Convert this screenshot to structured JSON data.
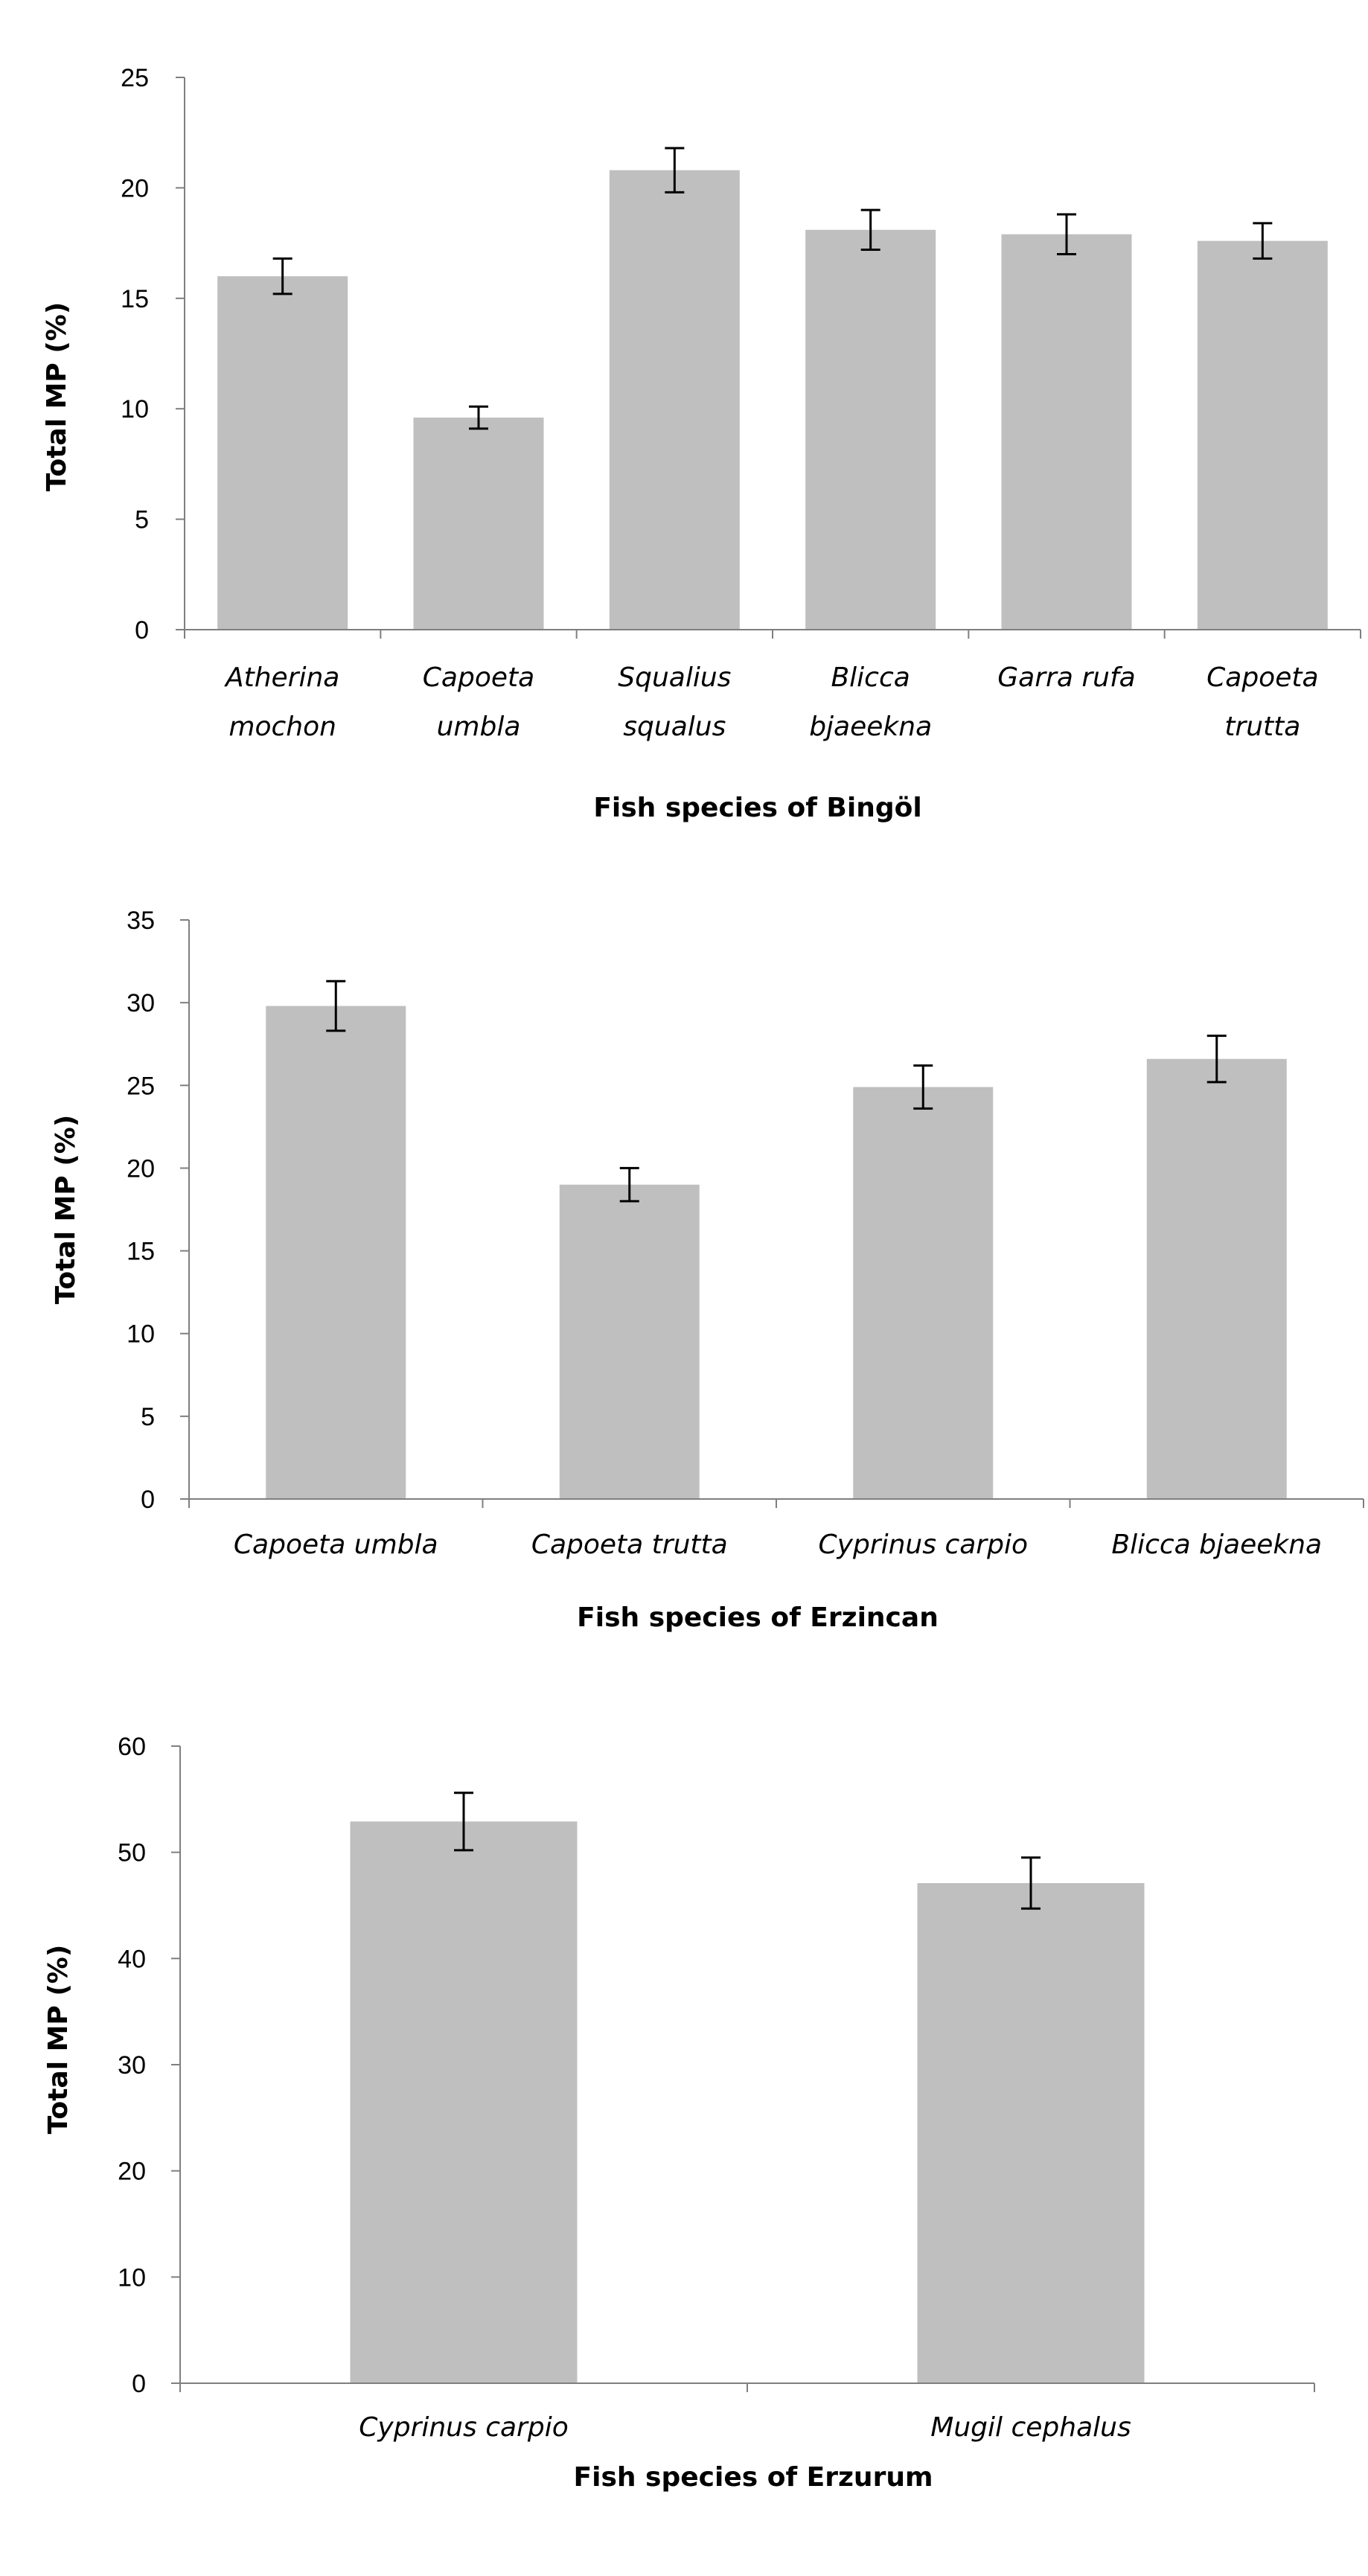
{
  "chart_data": [
    {
      "type": "bar",
      "title": "",
      "xlabel": "Fish species of Bingöl",
      "ylabel": "Total MP (%)",
      "ylim": [
        0,
        25
      ],
      "yticks": [
        0,
        5,
        10,
        15,
        20,
        25
      ],
      "grid": false,
      "categories": [
        [
          "Atherina",
          "mochon"
        ],
        [
          "Capoeta",
          "umbla"
        ],
        [
          "Squalius",
          "squalus"
        ],
        [
          "Blicca",
          "bjaeekna"
        ],
        [
          "Garra rufa"
        ],
        [
          "Capoeta",
          "trutta"
        ]
      ],
      "values": [
        16.0,
        9.6,
        20.8,
        18.1,
        17.9,
        17.6
      ],
      "errors": [
        0.8,
        0.5,
        1.0,
        0.9,
        0.9,
        0.8
      ],
      "color": "#bfbfbf"
    },
    {
      "type": "bar",
      "title": "",
      "xlabel": "Fish species of Erzincan",
      "ylabel": "Total MP (%)",
      "ylim": [
        0,
        35
      ],
      "yticks": [
        0,
        5,
        10,
        15,
        20,
        25,
        30,
        35
      ],
      "grid": false,
      "categories": [
        [
          "Capoeta umbla"
        ],
        [
          "Capoeta trutta"
        ],
        [
          "Cyprinus carpio"
        ],
        [
          "Blicca bjaeekna"
        ]
      ],
      "values": [
        29.8,
        19.0,
        24.9,
        26.6
      ],
      "errors": [
        1.5,
        1.0,
        1.3,
        1.4
      ],
      "color": "#bfbfbf"
    },
    {
      "type": "bar",
      "title": "",
      "xlabel": "Fish species of Erzurum",
      "ylabel": "Total MP (%)",
      "ylim": [
        0,
        60
      ],
      "yticks": [
        0,
        10,
        20,
        30,
        40,
        50,
        60
      ],
      "grid": false,
      "categories": [
        [
          "Cyprinus carpio"
        ],
        [
          "Mugil cephalus"
        ]
      ],
      "values": [
        52.9,
        47.1
      ],
      "errors": [
        2.7,
        2.4
      ],
      "color": "#bfbfbf"
    }
  ]
}
